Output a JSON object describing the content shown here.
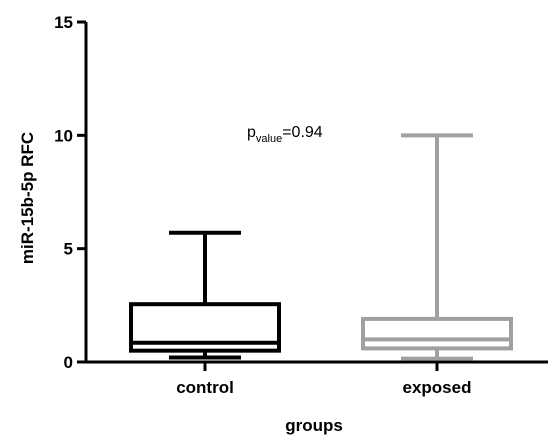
{
  "chart_data": {
    "type": "box",
    "title": "",
    "xlabel": "groups",
    "ylabel": "miR-15b-5p RFC",
    "ylim": [
      0,
      15
    ],
    "yticks": [
      "0",
      "5",
      "10",
      "15"
    ],
    "categories": [
      "control",
      "exposed"
    ],
    "series": [
      {
        "category": "control",
        "color": "#000000",
        "min": 0.2,
        "q1": 0.5,
        "median": 0.85,
        "q3": 2.55,
        "max": 5.7
      },
      {
        "category": "exposed",
        "color": "#a0a0a0",
        "min": 0.15,
        "q1": 0.6,
        "median": 1.0,
        "q3": 1.9,
        "max": 10.0
      }
    ],
    "annotation": {
      "prefix": "p",
      "subscript": "value",
      "suffix": "=0.94"
    },
    "grid": false,
    "legend": "none"
  }
}
